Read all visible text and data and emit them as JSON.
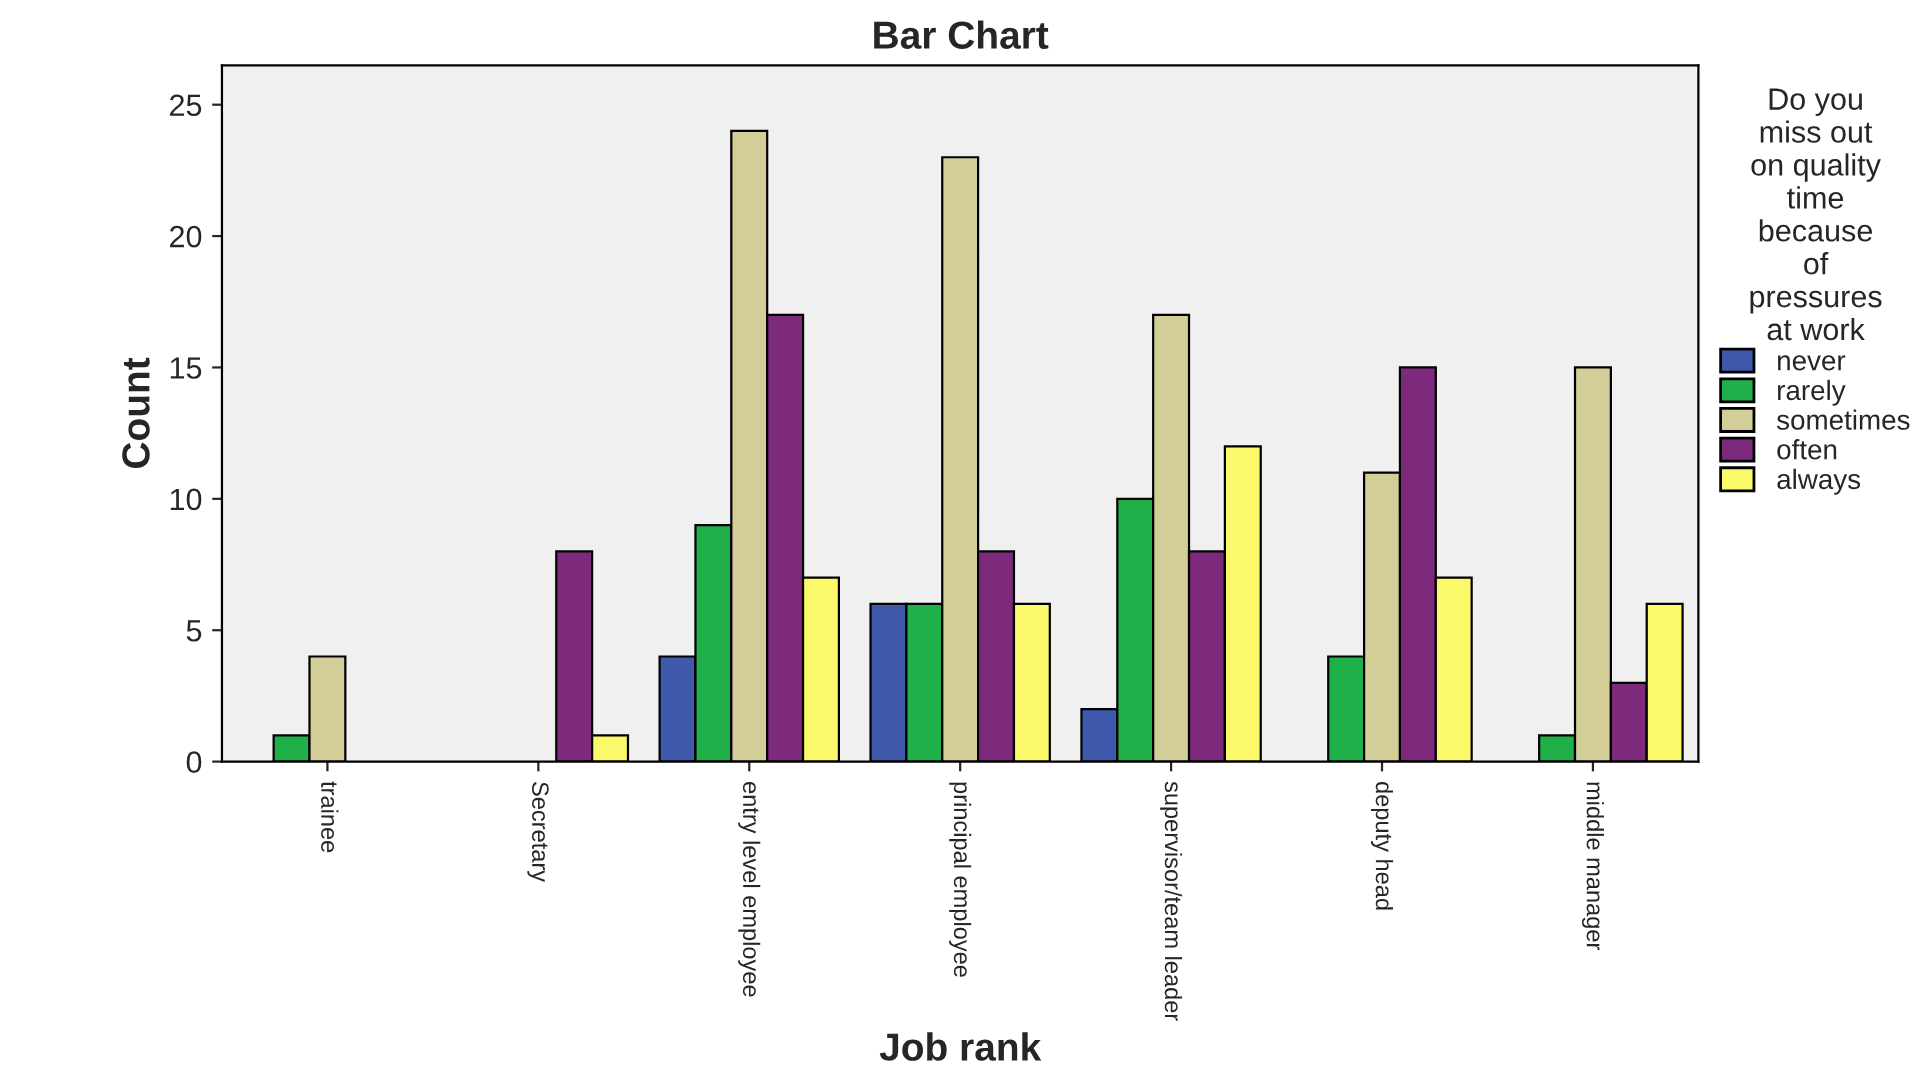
{
  "chart_data": {
    "type": "bar",
    "title": "Bar Chart",
    "xlabel": "Job rank",
    "ylabel": "Count",
    "legend_title": "Do you\nmiss out\non quality\ntime\nbecause\nof\npressures\nat work",
    "categories": [
      "trainee",
      "Secretary",
      "entry level employee",
      "principal employee",
      "supervisor/team leader",
      "deputy head",
      "middle manager"
    ],
    "series": [
      {
        "name": "never",
        "color": "#3e58ac",
        "values": [
          null,
          null,
          4,
          6,
          2,
          null,
          null
        ]
      },
      {
        "name": "rarely",
        "color": "#1fb04a",
        "values": [
          1,
          null,
          9,
          6,
          10,
          4,
          1
        ]
      },
      {
        "name": "sometimes",
        "color": "#d3ce97",
        "values": [
          4,
          null,
          24,
          23,
          17,
          11,
          15
        ]
      },
      {
        "name": "often",
        "color": "#7d2a7d",
        "values": [
          null,
          8,
          17,
          8,
          8,
          15,
          3
        ]
      },
      {
        "name": "always",
        "color": "#fbf869",
        "values": [
          null,
          1,
          7,
          6,
          12,
          7,
          6
        ]
      }
    ],
    "ylim": [
      0,
      26.5
    ],
    "yticks": [
      0,
      5,
      10,
      15,
      20,
      25
    ],
    "grid": false,
    "legend": "right"
  }
}
